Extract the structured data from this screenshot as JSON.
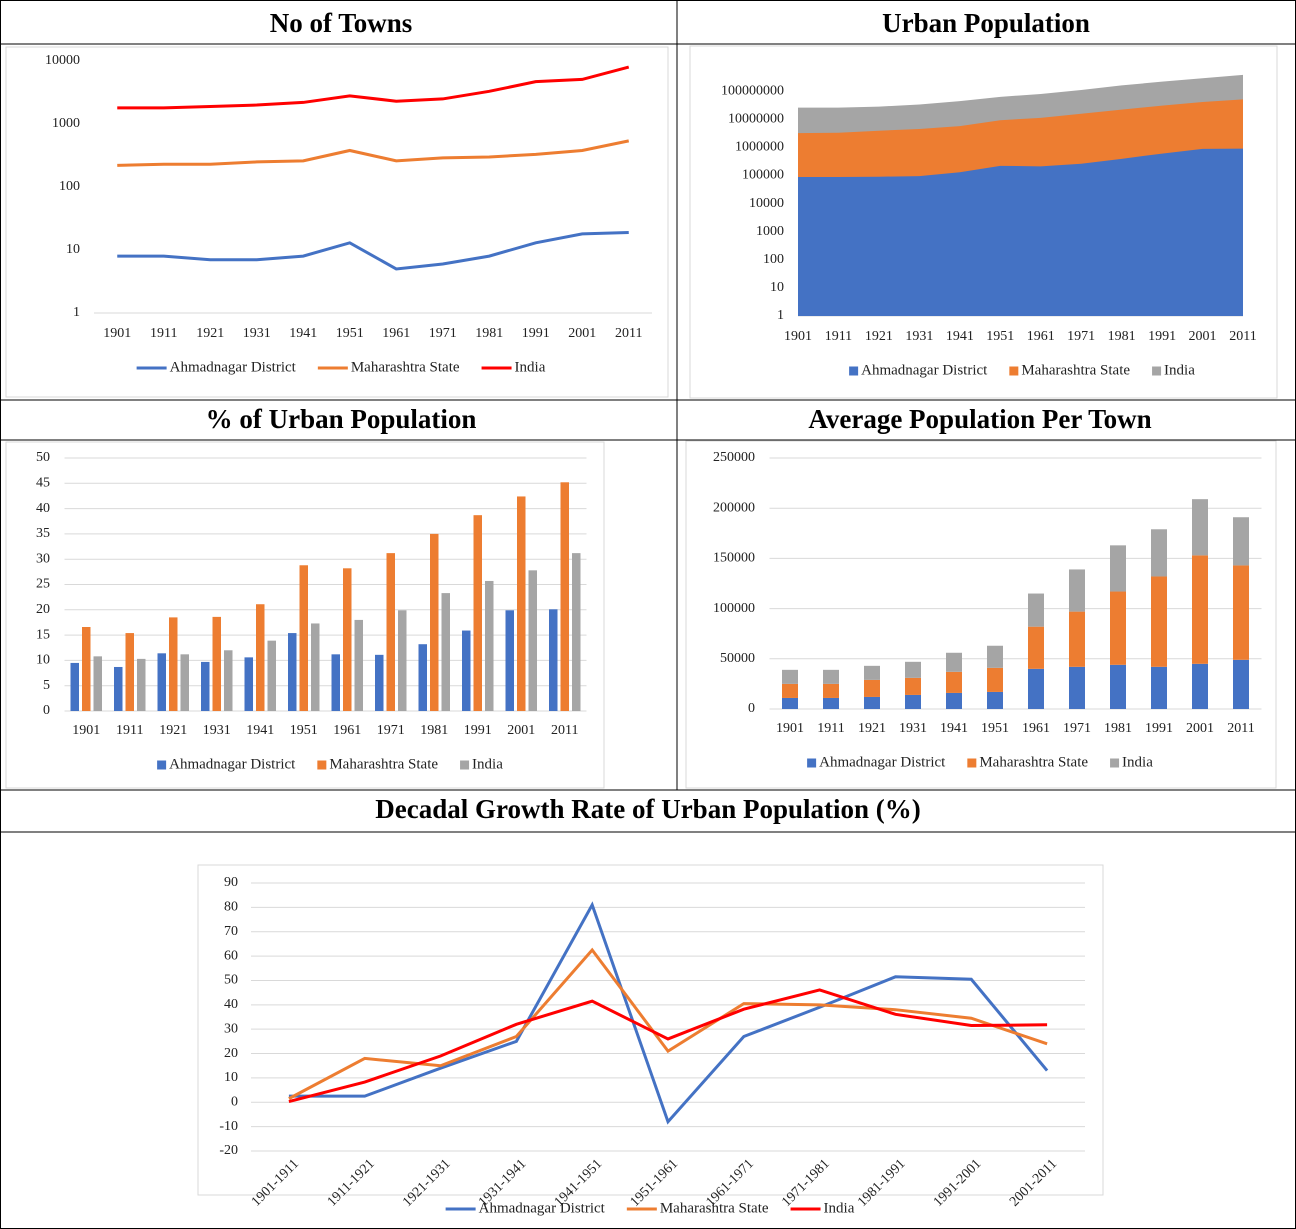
{
  "chart_data": [
    {
      "type": "line",
      "title": "No of Towns",
      "log_scale": true,
      "grid": false,
      "legend": "bottom",
      "categories": [
        "1901",
        "1911",
        "1921",
        "1931",
        "1941",
        "1951",
        "1961",
        "1971",
        "1981",
        "1991",
        "2001",
        "2011"
      ],
      "ylim": [
        1,
        10000
      ],
      "yticks": [
        1,
        10,
        100,
        1000,
        10000
      ],
      "series": [
        {
          "name": "Ahmadnagar District",
          "color": "#4472c4",
          "values": [
            8,
            8,
            7,
            7,
            8,
            13,
            5,
            6,
            8,
            13,
            18,
            19
          ]
        },
        {
          "name": "Maharashtra State",
          "color": "#ed7d31",
          "values": [
            220,
            230,
            230,
            250,
            260,
            380,
            260,
            290,
            300,
            330,
            380,
            540
          ]
        },
        {
          "name": "India",
          "color": "#ff0000",
          "values": [
            1800,
            1800,
            1900,
            2000,
            2200,
            2800,
            2300,
            2500,
            3300,
            4700,
            5100,
            8000
          ]
        }
      ]
    },
    {
      "type": "area",
      "title": "Urban Population",
      "log_scale": true,
      "grid": false,
      "legend": "bottom",
      "categories": [
        "1901",
        "1911",
        "1921",
        "1931",
        "1941",
        "1951",
        "1961",
        "1971",
        "1981",
        "1991",
        "2001",
        "2011"
      ],
      "ylim": [
        1,
        1000000000
      ],
      "yticks": [
        1,
        10,
        100,
        1000,
        10000,
        100000,
        1000000,
        10000000,
        100000000
      ],
      "series": [
        {
          "name": "Ahmadnagar District",
          "color": "#4472c4",
          "values": [
            88000,
            88000,
            90000,
            95000,
            130000,
            220000,
            210000,
            260000,
            390000,
            600000,
            880000,
            900000
          ]
        },
        {
          "name": "Maharashtra State",
          "color": "#ed7d31",
          "values": [
            3200000,
            3300000,
            3900000,
            4500000,
            5700000,
            9200000,
            11200000,
            15700000,
            22000000,
            30500000,
            41100000,
            50800000
          ]
        },
        {
          "name": "India",
          "color": "#a5a5a5",
          "values": [
            25900000,
            25900000,
            28100000,
            33500000,
            44200000,
            62400000,
            78900000,
            109100000,
            159500000,
            217600000,
            286100000,
            377100000
          ]
        }
      ]
    },
    {
      "type": "bar",
      "title": "% of Urban Population",
      "grid": true,
      "legend": "bottom",
      "categories": [
        "1901",
        "1911",
        "1921",
        "1931",
        "1941",
        "1951",
        "1961",
        "1971",
        "1981",
        "1991",
        "2001",
        "2011"
      ],
      "ylim": [
        0,
        50
      ],
      "yticks": [
        0,
        5,
        10,
        15,
        20,
        25,
        30,
        35,
        40,
        45,
        50
      ],
      "series": [
        {
          "name": "Ahmadnagar District",
          "color": "#4472c4",
          "values": [
            9.5,
            8.7,
            11.4,
            9.7,
            10.6,
            15.4,
            11.2,
            11.1,
            13.2,
            15.9,
            19.9,
            20.1
          ]
        },
        {
          "name": "Maharashtra State",
          "color": "#ed7d31",
          "values": [
            16.6,
            15.4,
            18.5,
            18.6,
            21.1,
            28.8,
            28.2,
            31.2,
            35.0,
            38.7,
            42.4,
            45.2
          ]
        },
        {
          "name": "India",
          "color": "#a5a5a5",
          "values": [
            10.8,
            10.3,
            11.2,
            12.0,
            13.9,
            17.3,
            18.0,
            19.9,
            23.3,
            25.7,
            27.8,
            31.2
          ]
        }
      ]
    },
    {
      "type": "bar",
      "stacked": true,
      "title": "Average Population Per Town",
      "grid": true,
      "legend": "bottom",
      "categories": [
        "1901",
        "1911",
        "1921",
        "1931",
        "1941",
        "1951",
        "1961",
        "1971",
        "1981",
        "1991",
        "2001",
        "2011"
      ],
      "ylim": [
        0,
        250000
      ],
      "yticks": [
        0,
        50000,
        100000,
        150000,
        200000,
        250000
      ],
      "series": [
        {
          "name": "Ahmadnagar District",
          "color": "#4472c4",
          "values": [
            11000,
            11000,
            12000,
            14000,
            16000,
            17000,
            40000,
            42000,
            44000,
            42000,
            45000,
            49000
          ]
        },
        {
          "name": "Maharashtra State",
          "color": "#ed7d31",
          "values": [
            14000,
            14000,
            17000,
            17000,
            21000,
            24000,
            42000,
            55000,
            73000,
            90000,
            108000,
            94000
          ]
        },
        {
          "name": "India",
          "color": "#a5a5a5",
          "values": [
            14000,
            14000,
            14000,
            16000,
            19000,
            22000,
            33000,
            42000,
            46000,
            47000,
            56000,
            48000
          ]
        }
      ]
    },
    {
      "type": "line",
      "title": "Decadal Growth Rate of Urban Population (%)",
      "grid": true,
      "legend": "bottom",
      "categories": [
        "1901-1911",
        "1911-1921",
        "1921-1931",
        "1931-1941",
        "1941-1951",
        "1951-1961",
        "1961-1971",
        "1971-1981",
        "1981-1991",
        "1991-2001",
        "2001-2011"
      ],
      "ylim": [
        -20,
        90
      ],
      "yticks": [
        -20,
        -10,
        0,
        10,
        20,
        30,
        40,
        50,
        60,
        70,
        80,
        90
      ],
      "series": [
        {
          "name": "Ahmadnagar District",
          "color": "#4472c4",
          "values": [
            2.5,
            2.5,
            14,
            25,
            81,
            -8,
            27,
            39,
            51.5,
            50.5,
            13
          ]
        },
        {
          "name": "Maharashtra State",
          "color": "#ed7d31",
          "values": [
            1.5,
            18,
            15,
            27,
            62.5,
            21,
            40.5,
            40,
            38,
            34.5,
            24
          ]
        },
        {
          "name": "India",
          "color": "#ff0000",
          "values": [
            0.3,
            8.3,
            19,
            32,
            41.5,
            26,
            38.2,
            46.1,
            36.1,
            31.5,
            31.8
          ]
        }
      ]
    }
  ]
}
